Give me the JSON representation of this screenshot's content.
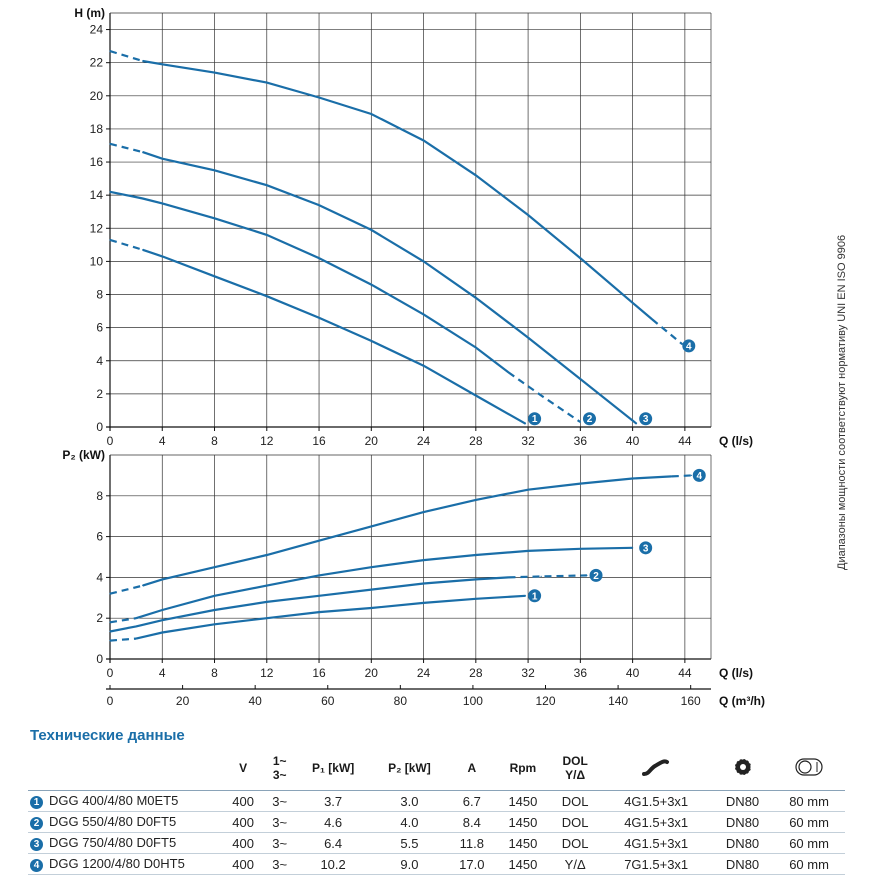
{
  "colors": {
    "curve": "#1a6ea8",
    "grid": "#222222",
    "badge": "#1a6ea8"
  },
  "chart_data": [
    {
      "type": "line",
      "ylabel": "H (m)",
      "xlabel": "Q (l/s)",
      "xlim": [
        0,
        46
      ],
      "ylim": [
        0,
        25
      ],
      "xticks": [
        0,
        4,
        8,
        12,
        16,
        20,
        24,
        28,
        32,
        36,
        40,
        44
      ],
      "yticks": [
        0,
        2,
        4,
        6,
        8,
        10,
        12,
        14,
        16,
        18,
        20,
        22,
        24
      ],
      "grid": true,
      "series": [
        {
          "name": "1",
          "dashed_x": [
            0,
            2.5
          ],
          "points": [
            [
              0,
              11.3
            ],
            [
              2.5,
              10.7
            ],
            [
              4,
              10.3
            ],
            [
              8,
              9.1
            ],
            [
              12,
              7.9
            ],
            [
              16,
              6.6
            ],
            [
              20,
              5.2
            ],
            [
              24,
              3.7
            ],
            [
              28,
              1.9
            ],
            [
              31.8,
              0.2
            ]
          ]
        },
        {
          "name": "2",
          "dashed_x": [
            30.5,
            36
          ],
          "points": [
            [
              0,
              14.2
            ],
            [
              2.5,
              13.8
            ],
            [
              4,
              13.5
            ],
            [
              8,
              12.6
            ],
            [
              12,
              11.6
            ],
            [
              16,
              10.2
            ],
            [
              20,
              8.6
            ],
            [
              24,
              6.8
            ],
            [
              28,
              4.8
            ],
            [
              30.5,
              3.3
            ],
            [
              33,
              1.9
            ],
            [
              36,
              0.3
            ]
          ]
        },
        {
          "name": "3",
          "dashed_x": [
            0,
            2.5
          ],
          "points": [
            [
              0,
              17.1
            ],
            [
              2.5,
              16.6
            ],
            [
              4,
              16.2
            ],
            [
              8,
              15.5
            ],
            [
              12,
              14.6
            ],
            [
              16,
              13.4
            ],
            [
              20,
              11.9
            ],
            [
              24,
              10.0
            ],
            [
              28,
              7.8
            ],
            [
              32,
              5.4
            ],
            [
              36,
              2.9
            ],
            [
              40.3,
              0.2
            ]
          ]
        },
        {
          "name": "4",
          "dashed_x": [
            0,
            2.5
          ],
          "dashed_x2": [
            41.5,
            43.8
          ],
          "points": [
            [
              0,
              22.7
            ],
            [
              2.5,
              22.1
            ],
            [
              4,
              21.9
            ],
            [
              8,
              21.4
            ],
            [
              12,
              20.8
            ],
            [
              16,
              19.9
            ],
            [
              20,
              18.9
            ],
            [
              24,
              17.3
            ],
            [
              28,
              15.2
            ],
            [
              32,
              12.8
            ],
            [
              36,
              10.2
            ],
            [
              40,
              7.5
            ],
            [
              41.5,
              6.5
            ],
            [
              43.8,
              5.0
            ]
          ]
        }
      ],
      "labels": [
        {
          "text": "1",
          "x": 32.5,
          "y": 0.5
        },
        {
          "text": "2",
          "x": 36.7,
          "y": 0.5
        },
        {
          "text": "3",
          "x": 41.0,
          "y": 0.5
        },
        {
          "text": "4",
          "x": 44.3,
          "y": 4.9
        }
      ]
    },
    {
      "type": "line",
      "ylabel": "P₂ (kW)",
      "xlabel": "Q (l/s)",
      "x2label": "Q (m³/h)",
      "xlim": [
        0,
        46
      ],
      "ylim": [
        0,
        10
      ],
      "xticks": [
        0,
        4,
        8,
        12,
        16,
        20,
        24,
        28,
        32,
        36,
        40,
        44
      ],
      "x2ticks": [
        0,
        20,
        40,
        60,
        80,
        100,
        120,
        140,
        160
      ],
      "yticks": [
        0,
        2,
        4,
        6,
        8
      ],
      "grid": true,
      "series": [
        {
          "name": "1",
          "dashed_x": [
            0,
            2
          ],
          "points": [
            [
              0,
              0.9
            ],
            [
              2,
              1.0
            ],
            [
              4,
              1.3
            ],
            [
              8,
              1.7
            ],
            [
              12,
              2.0
            ],
            [
              16,
              2.3
            ],
            [
              20,
              2.5
            ],
            [
              24,
              2.75
            ],
            [
              28,
              2.95
            ],
            [
              31.8,
              3.1
            ]
          ]
        },
        {
          "name": "2",
          "dashed_x": [
            30.5,
            36.5
          ],
          "points": [
            [
              0,
              1.35
            ],
            [
              2,
              1.6
            ],
            [
              4,
              1.9
            ],
            [
              8,
              2.4
            ],
            [
              12,
              2.8
            ],
            [
              16,
              3.1
            ],
            [
              20,
              3.4
            ],
            [
              24,
              3.7
            ],
            [
              28,
              3.9
            ],
            [
              30.5,
              4.0
            ],
            [
              33,
              4.05
            ],
            [
              36.5,
              4.1
            ]
          ]
        },
        {
          "name": "3",
          "dashed_x": [
            0,
            2
          ],
          "points": [
            [
              0,
              1.8
            ],
            [
              2,
              2.0
            ],
            [
              4,
              2.4
            ],
            [
              8,
              3.1
            ],
            [
              12,
              3.6
            ],
            [
              16,
              4.1
            ],
            [
              20,
              4.5
            ],
            [
              24,
              4.85
            ],
            [
              28,
              5.1
            ],
            [
              32,
              5.3
            ],
            [
              36,
              5.4
            ],
            [
              40,
              5.45
            ]
          ]
        },
        {
          "name": "4",
          "dashed_x": [
            0,
            2.5
          ],
          "dashed_x2": [
            43,
            44.5
          ],
          "points": [
            [
              0,
              3.2
            ],
            [
              2.5,
              3.6
            ],
            [
              4,
              3.9
            ],
            [
              8,
              4.5
            ],
            [
              12,
              5.1
            ],
            [
              16,
              5.8
            ],
            [
              20,
              6.5
            ],
            [
              24,
              7.2
            ],
            [
              28,
              7.8
            ],
            [
              32,
              8.3
            ],
            [
              36,
              8.6
            ],
            [
              40,
              8.85
            ],
            [
              43,
              8.95
            ],
            [
              44.5,
              9.0
            ]
          ]
        }
      ],
      "labels": [
        {
          "text": "1",
          "x": 32.5,
          "y": 3.1
        },
        {
          "text": "2",
          "x": 37.2,
          "y": 4.1
        },
        {
          "text": "3",
          "x": 41.0,
          "y": 5.45
        },
        {
          "text": "4",
          "x": 45.1,
          "y": 9.0
        }
      ]
    }
  ],
  "note": "Диапазоны мощности соответствуют нормативу UNI EN ISO 9906",
  "table": {
    "title": "Технические данные",
    "headers": {
      "v": "V",
      "phase_top": "1~",
      "phase_bottom": "3~",
      "p1": "P₁ [kW]",
      "p2": "P₂ [kW]",
      "a": "A",
      "rpm": "Rpm",
      "dol_top": "DOL",
      "dol_bottom": "Y/Δ",
      "cable_icon": "cable-icon",
      "flange_icon": "flange-icon",
      "passage_icon": "passage-icon"
    },
    "rows": [
      {
        "num": "1",
        "model": "DGG 400/4/80 M0ET5",
        "v": "400",
        "phase": "3~",
        "p1": "3.7",
        "p2": "3.0",
        "a": "6.7",
        "rpm": "1450",
        "start": "DOL",
        "cable": "4G1.5+3x1",
        "dn": "DN80",
        "passage": "80 mm"
      },
      {
        "num": "2",
        "model": "DGG 550/4/80 D0FT5",
        "v": "400",
        "phase": "3~",
        "p1": "4.6",
        "p2": "4.0",
        "a": "8.4",
        "rpm": "1450",
        "start": "DOL",
        "cable": "4G1.5+3x1",
        "dn": "DN80",
        "passage": "60 mm"
      },
      {
        "num": "3",
        "model": "DGG 750/4/80 D0FT5",
        "v": "400",
        "phase": "3~",
        "p1": "6.4",
        "p2": "5.5",
        "a": "11.8",
        "rpm": "1450",
        "start": "DOL",
        "cable": "4G1.5+3x1",
        "dn": "DN80",
        "passage": "60 mm"
      },
      {
        "num": "4",
        "model": "DGG 1200/4/80 D0HT5",
        "v": "400",
        "phase": "3~",
        "p1": "10.2",
        "p2": "9.0",
        "a": "17.0",
        "rpm": "1450",
        "start": "Y/Δ",
        "cable": "7G1.5+3x1",
        "dn": "DN80",
        "passage": "60 mm"
      }
    ]
  }
}
